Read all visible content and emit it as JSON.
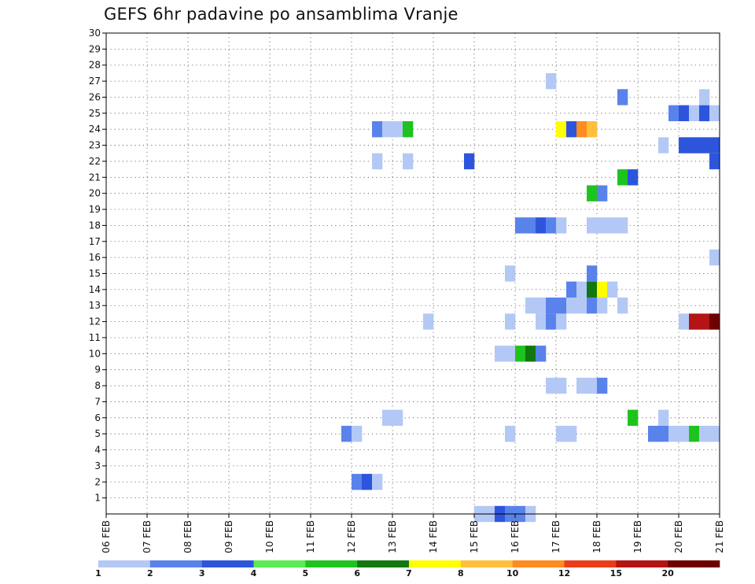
{
  "chart_data": {
    "type": "heatmap",
    "title": "GEFS 6hr padavine po ansamblima Vranje",
    "x_tick_labels": [
      "06 FEB",
      "07 FEB",
      "08 FEB",
      "09 FEB",
      "10 FEB",
      "11 FEB",
      "12 FEB",
      "13 FEB",
      "14 FEB",
      "15 FEB",
      "16 FEB",
      "17 FEB",
      "18 FEB",
      "19 FEB",
      "20 FEB",
      "21 FEB"
    ],
    "x_tick_label_dates": [
      "2025-02-06",
      "2025-02-07",
      "2025-02-08",
      "2025-02-09",
      "2025-02-10",
      "2025-02-11",
      "2025-02-12",
      "2025-02-13",
      "2025-02-14",
      "2025-02-15",
      "2025-02-16",
      "2025-02-17",
      "2025-02-18",
      "2025-02-19",
      "2025-02-20",
      "2025-02-21"
    ],
    "xlim": [
      "2025-02-06T00:00",
      "2025-02-21T00:00"
    ],
    "time_step_hours": 6,
    "y_tick_labels": [
      "1",
      "2",
      "3",
      "4",
      "5",
      "6",
      "7",
      "8",
      "9",
      "10",
      "11",
      "12",
      "13",
      "14",
      "15",
      "16",
      "17",
      "18",
      "19",
      "20",
      "21",
      "22",
      "23",
      "24",
      "25",
      "26",
      "27",
      "28",
      "29",
      "30"
    ],
    "ylim": [
      0,
      30
    ],
    "grid": true,
    "legend": {
      "placement": "bottom",
      "labels": [
        "1",
        "2",
        "3",
        "4",
        "5",
        "6",
        "7",
        "8",
        "10",
        "12",
        "15",
        "20"
      ],
      "colors": [
        "#b4c8f5",
        "#5a82eb",
        "#2d55dc",
        "#5aeb55",
        "#1ec31e",
        "#117811",
        "#ffff00",
        "#ffbe3c",
        "#ff8c1e",
        "#eb3c19",
        "#b41414",
        "#6e0000"
      ]
    },
    "cells": [
      {
        "t": "2025-02-15T00:00",
        "m": 0,
        "v": 1
      },
      {
        "t": "2025-02-15T06:00",
        "m": 0,
        "v": 1
      },
      {
        "t": "2025-02-15T12:00",
        "m": 0,
        "v": 3
      },
      {
        "t": "2025-02-15T18:00",
        "m": 0,
        "v": 2
      },
      {
        "t": "2025-02-16T00:00",
        "m": 0,
        "v": 2
      },
      {
        "t": "2025-02-16T06:00",
        "m": 0,
        "v": 1
      },
      {
        "t": "2025-02-12T00:00",
        "m": 2,
        "v": 2
      },
      {
        "t": "2025-02-12T06:00",
        "m": 2,
        "v": 3
      },
      {
        "t": "2025-02-12T12:00",
        "m": 2,
        "v": 1
      },
      {
        "t": "2025-02-11T18:00",
        "m": 5,
        "v": 2
      },
      {
        "t": "2025-02-12T00:00",
        "m": 5,
        "v": 1
      },
      {
        "t": "2025-02-15T18:00",
        "m": 5,
        "v": 1
      },
      {
        "t": "2025-02-17T00:00",
        "m": 5,
        "v": 1
      },
      {
        "t": "2025-02-17T06:00",
        "m": 5,
        "v": 1
      },
      {
        "t": "2025-02-19T06:00",
        "m": 5,
        "v": 2
      },
      {
        "t": "2025-02-19T12:00",
        "m": 5,
        "v": 2
      },
      {
        "t": "2025-02-19T18:00",
        "m": 5,
        "v": 1
      },
      {
        "t": "2025-02-20T00:00",
        "m": 5,
        "v": 1
      },
      {
        "t": "2025-02-20T06:00",
        "m": 5,
        "v": 5
      },
      {
        "t": "2025-02-20T12:00",
        "m": 5,
        "v": 1
      },
      {
        "t": "2025-02-20T18:00",
        "m": 5,
        "v": 1
      },
      {
        "t": "2025-02-12T18:00",
        "m": 6,
        "v": 1
      },
      {
        "t": "2025-02-13T00:00",
        "m": 6,
        "v": 1
      },
      {
        "t": "2025-02-18T18:00",
        "m": 6,
        "v": 5
      },
      {
        "t": "2025-02-19T12:00",
        "m": 6,
        "v": 1
      },
      {
        "t": "2025-02-16T18:00",
        "m": 8,
        "v": 1
      },
      {
        "t": "2025-02-17T00:00",
        "m": 8,
        "v": 1
      },
      {
        "t": "2025-02-17T12:00",
        "m": 8,
        "v": 1
      },
      {
        "t": "2025-02-17T18:00",
        "m": 8,
        "v": 1
      },
      {
        "t": "2025-02-18T00:00",
        "m": 8,
        "v": 2
      },
      {
        "t": "2025-02-15T12:00",
        "m": 10,
        "v": 1
      },
      {
        "t": "2025-02-15T18:00",
        "m": 10,
        "v": 1
      },
      {
        "t": "2025-02-16T00:00",
        "m": 10,
        "v": 5
      },
      {
        "t": "2025-02-16T06:00",
        "m": 10,
        "v": 6
      },
      {
        "t": "2025-02-16T12:00",
        "m": 10,
        "v": 2
      },
      {
        "t": "2025-02-13T18:00",
        "m": 12,
        "v": 1
      },
      {
        "t": "2025-02-15T18:00",
        "m": 12,
        "v": 1
      },
      {
        "t": "2025-02-16T12:00",
        "m": 12,
        "v": 1
      },
      {
        "t": "2025-02-16T18:00",
        "m": 12,
        "v": 2
      },
      {
        "t": "2025-02-17T00:00",
        "m": 12,
        "v": 1
      },
      {
        "t": "2025-02-20T00:00",
        "m": 12,
        "v": 1
      },
      {
        "t": "2025-02-20T06:00",
        "m": 12,
        "v": 15
      },
      {
        "t": "2025-02-20T12:00",
        "m": 12,
        "v": 15
      },
      {
        "t": "2025-02-20T18:00",
        "m": 12,
        "v": 20
      },
      {
        "t": "2025-02-16T06:00",
        "m": 13,
        "v": 1
      },
      {
        "t": "2025-02-16T12:00",
        "m": 13,
        "v": 1
      },
      {
        "t": "2025-02-16T18:00",
        "m": 13,
        "v": 2
      },
      {
        "t": "2025-02-17T00:00",
        "m": 13,
        "v": 2
      },
      {
        "t": "2025-02-17T06:00",
        "m": 13,
        "v": 1
      },
      {
        "t": "2025-02-17T12:00",
        "m": 13,
        "v": 1
      },
      {
        "t": "2025-02-17T18:00",
        "m": 13,
        "v": 2
      },
      {
        "t": "2025-02-18T00:00",
        "m": 13,
        "v": 1
      },
      {
        "t": "2025-02-18T12:00",
        "m": 13,
        "v": 1
      },
      {
        "t": "2025-02-17T06:00",
        "m": 14,
        "v": 2
      },
      {
        "t": "2025-02-17T12:00",
        "m": 14,
        "v": 1
      },
      {
        "t": "2025-02-17T18:00",
        "m": 14,
        "v": 6
      },
      {
        "t": "2025-02-18T00:00",
        "m": 14,
        "v": 7
      },
      {
        "t": "2025-02-18T06:00",
        "m": 14,
        "v": 1
      },
      {
        "t": "2025-02-15T18:00",
        "m": 15,
        "v": 1
      },
      {
        "t": "2025-02-17T18:00",
        "m": 15,
        "v": 2
      },
      {
        "t": "2025-02-20T18:00",
        "m": 16,
        "v": 1
      },
      {
        "t": "2025-02-16T00:00",
        "m": 18,
        "v": 2
      },
      {
        "t": "2025-02-16T06:00",
        "m": 18,
        "v": 2
      },
      {
        "t": "2025-02-16T12:00",
        "m": 18,
        "v": 3
      },
      {
        "t": "2025-02-16T18:00",
        "m": 18,
        "v": 2
      },
      {
        "t": "2025-02-17T00:00",
        "m": 18,
        "v": 1
      },
      {
        "t": "2025-02-17T18:00",
        "m": 18,
        "v": 1
      },
      {
        "t": "2025-02-18T00:00",
        "m": 18,
        "v": 1
      },
      {
        "t": "2025-02-18T06:00",
        "m": 18,
        "v": 1
      },
      {
        "t": "2025-02-18T12:00",
        "m": 18,
        "v": 1
      },
      {
        "t": "2025-02-17T18:00",
        "m": 20,
        "v": 5
      },
      {
        "t": "2025-02-18T00:00",
        "m": 20,
        "v": 2
      },
      {
        "t": "2025-02-18T12:00",
        "m": 21,
        "v": 5
      },
      {
        "t": "2025-02-18T18:00",
        "m": 21,
        "v": 3
      },
      {
        "t": "2025-02-12T12:00",
        "m": 22,
        "v": 1
      },
      {
        "t": "2025-02-13T06:00",
        "m": 22,
        "v": 1
      },
      {
        "t": "2025-02-14T18:00",
        "m": 22,
        "v": 3
      },
      {
        "t": "2025-02-20T18:00",
        "m": 22,
        "v": 3
      },
      {
        "t": "2025-02-19T12:00",
        "m": 23,
        "v": 1
      },
      {
        "t": "2025-02-20T00:00",
        "m": 23,
        "v": 3
      },
      {
        "t": "2025-02-20T06:00",
        "m": 23,
        "v": 3
      },
      {
        "t": "2025-02-20T12:00",
        "m": 23,
        "v": 3
      },
      {
        "t": "2025-02-20T18:00",
        "m": 23,
        "v": 3
      },
      {
        "t": "2025-02-12T12:00",
        "m": 24,
        "v": 2
      },
      {
        "t": "2025-02-12T18:00",
        "m": 24,
        "v": 1
      },
      {
        "t": "2025-02-13T00:00",
        "m": 24,
        "v": 1
      },
      {
        "t": "2025-02-13T06:00",
        "m": 24,
        "v": 5
      },
      {
        "t": "2025-02-17T00:00",
        "m": 24,
        "v": 7
      },
      {
        "t": "2025-02-17T06:00",
        "m": 24,
        "v": 3
      },
      {
        "t": "2025-02-17T12:00",
        "m": 24,
        "v": 10
      },
      {
        "t": "2025-02-17T18:00",
        "m": 24,
        "v": 8
      },
      {
        "t": "2025-02-19T18:00",
        "m": 25,
        "v": 2
      },
      {
        "t": "2025-02-20T00:00",
        "m": 25,
        "v": 3
      },
      {
        "t": "2025-02-20T06:00",
        "m": 25,
        "v": 1
      },
      {
        "t": "2025-02-20T12:00",
        "m": 25,
        "v": 3
      },
      {
        "t": "2025-02-20T18:00",
        "m": 25,
        "v": 1
      },
      {
        "t": "2025-02-18T12:00",
        "m": 26,
        "v": 2
      },
      {
        "t": "2025-02-20T12:00",
        "m": 26,
        "v": 1
      },
      {
        "t": "2025-02-16T18:00",
        "m": 27,
        "v": 1
      }
    ]
  }
}
